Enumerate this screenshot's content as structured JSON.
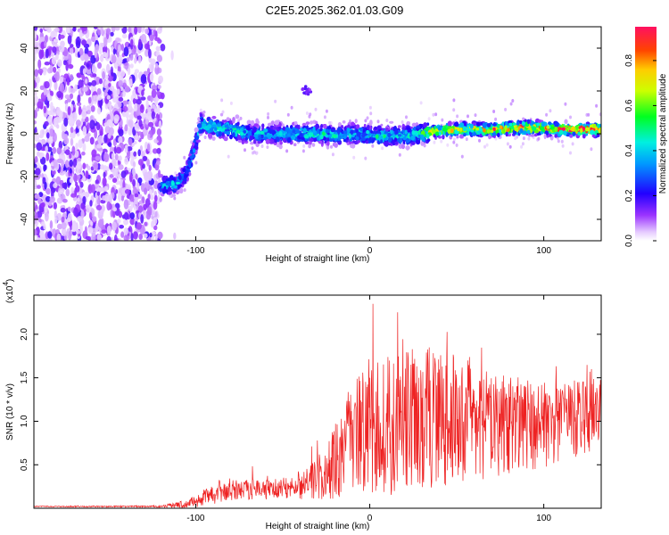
{
  "title": "C2E5.2025.362.01.03.G09",
  "chart_data": [
    {
      "type": "heatmap",
      "name": "spectrogram",
      "xlabel": "Height of straight line (km)",
      "ylabel": "Frequency (Hz)",
      "xlim": [
        -193,
        133
      ],
      "ylim": [
        -50,
        50
      ],
      "xticks": [
        -100,
        0,
        100
      ],
      "yticks": [
        -40,
        -20,
        0,
        20,
        40
      ],
      "xtick_labels": [
        "-100",
        "0",
        "100"
      ],
      "ytick_labels": [
        "-40",
        "-20",
        "0",
        "20",
        "40"
      ],
      "colorbar": {
        "label": "Normalized spectral amplitude",
        "range": [
          0.0,
          0.95
        ],
        "ticks": [
          0.0,
          0.2,
          0.4,
          0.6,
          0.8
        ],
        "tick_labels": [
          "0.0",
          "0.2",
          "0.4",
          "0.6",
          "0.8"
        ]
      },
      "noise_region_x": [
        -193,
        -120
      ],
      "signal_ridge": {
        "x": [
          -120,
          -115,
          -110,
          -105,
          -100,
          -97,
          -90,
          -80,
          -70,
          -60,
          -50,
          -40,
          -30,
          -20,
          -10,
          0,
          10,
          20,
          30,
          35,
          50,
          70,
          90,
          110,
          133
        ],
        "freq_hz": [
          -24,
          -24,
          -23,
          -18,
          -5,
          5,
          3,
          2,
          0,
          0,
          0,
          0,
          0,
          -1,
          0,
          -1,
          -1,
          -1,
          0,
          1,
          2,
          2,
          3,
          2,
          2
        ],
        "amplitude": [
          0.35,
          0.4,
          0.4,
          0.35,
          0.4,
          0.45,
          0.45,
          0.45,
          0.4,
          0.4,
          0.4,
          0.45,
          0.45,
          0.45,
          0.45,
          0.45,
          0.45,
          0.45,
          0.5,
          0.7,
          0.75,
          0.8,
          0.85,
          0.9,
          0.9
        ]
      },
      "extra_blob": {
        "x": -36,
        "freq_hz": 20
      }
    },
    {
      "type": "line",
      "name": "snr",
      "xlabel": "Height of straight line (km)",
      "ylabel": "SNR (10 * v/v)",
      "scale_label": "(x10",
      "scale_exp": "4",
      "xlim": [
        -193,
        133
      ],
      "ylim": [
        0,
        2.45
      ],
      "xticks": [
        -100,
        0,
        100
      ],
      "yticks": [
        0.5,
        1.0,
        1.5,
        2.0
      ],
      "xtick_labels": [
        "-100",
        "0",
        "100"
      ],
      "ytick_labels": [
        "0.5",
        "1.0",
        "1.5",
        "2.0"
      ],
      "color": "#ee2222",
      "envelope": {
        "x": [
          -193,
          -120,
          -105,
          -95,
          -85,
          -75,
          -65,
          -55,
          -45,
          -35,
          -25,
          -20,
          -15,
          -10,
          0,
          10,
          20,
          30,
          40,
          50,
          60,
          70,
          80,
          90,
          100,
          110,
          120,
          133
        ],
        "mean": [
          0.02,
          0.02,
          0.05,
          0.12,
          0.18,
          0.22,
          0.22,
          0.22,
          0.25,
          0.3,
          0.4,
          0.55,
          0.7,
          0.8,
          0.9,
          0.95,
          1.0,
          1.05,
          1.05,
          1.0,
          1.0,
          0.95,
          0.95,
          0.95,
          0.95,
          1.0,
          1.05,
          1.1
        ],
        "spread": [
          0.005,
          0.01,
          0.05,
          0.1,
          0.12,
          0.12,
          0.12,
          0.12,
          0.14,
          0.2,
          0.3,
          0.45,
          0.55,
          0.65,
          0.75,
          0.8,
          0.85,
          0.85,
          0.8,
          0.75,
          0.7,
          0.6,
          0.6,
          0.55,
          0.5,
          0.45,
          0.45,
          0.4
        ]
      }
    }
  ]
}
